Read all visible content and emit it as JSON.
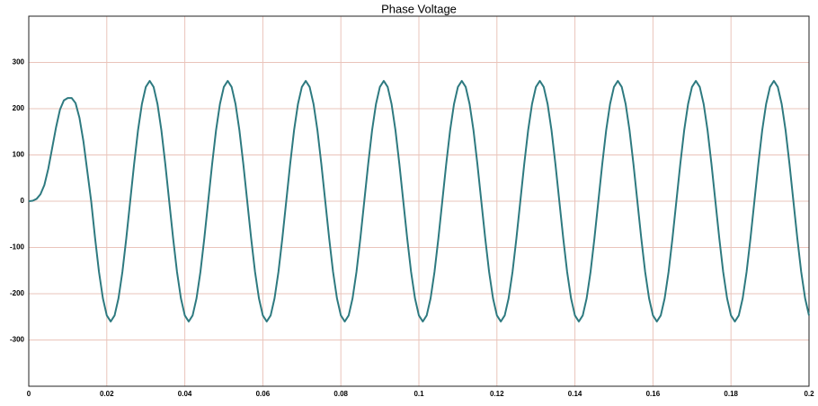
{
  "chart_data": {
    "type": "line",
    "title": "Phase Voltage",
    "x": [
      0,
      0.001,
      0.002,
      0.003,
      0.004,
      0.005,
      0.006,
      0.007,
      0.008,
      0.009,
      0.01,
      0.011,
      0.012,
      0.013,
      0.014,
      0.015,
      0.016,
      0.017,
      0.018,
      0.019,
      0.02,
      0.021,
      0.022,
      0.023,
      0.024,
      0.025,
      0.026,
      0.027,
      0.028,
      0.029,
      0.03,
      0.031,
      0.032,
      0.033,
      0.034,
      0.035,
      0.036,
      0.037,
      0.038,
      0.039,
      0.04,
      0.041,
      0.042,
      0.043,
      0.044,
      0.045,
      0.046,
      0.047,
      0.048,
      0.049,
      0.05,
      0.051,
      0.052,
      0.053,
      0.054,
      0.055,
      0.056,
      0.057,
      0.058,
      0.059,
      0.06,
      0.061,
      0.062,
      0.063,
      0.064,
      0.065,
      0.066,
      0.067,
      0.068,
      0.069,
      0.07,
      0.071,
      0.072,
      0.073,
      0.074,
      0.075,
      0.076,
      0.077,
      0.078,
      0.079,
      0.08,
      0.081,
      0.082,
      0.083,
      0.084,
      0.085,
      0.086,
      0.087,
      0.088,
      0.089,
      0.09,
      0.091,
      0.092,
      0.093,
      0.094,
      0.095,
      0.096,
      0.097,
      0.098,
      0.099,
      0.1,
      0.101,
      0.102,
      0.103,
      0.104,
      0.105,
      0.106,
      0.107,
      0.108,
      0.109,
      0.11,
      0.111,
      0.112,
      0.113,
      0.114,
      0.115,
      0.116,
      0.117,
      0.118,
      0.119,
      0.12,
      0.121,
      0.122,
      0.123,
      0.124,
      0.125,
      0.126,
      0.127,
      0.128,
      0.129,
      0.13,
      0.131,
      0.132,
      0.133,
      0.134,
      0.135,
      0.136,
      0.137,
      0.138,
      0.139,
      0.14,
      0.141,
      0.142,
      0.143,
      0.144,
      0.145,
      0.146,
      0.147,
      0.148,
      0.149,
      0.15,
      0.151,
      0.152,
      0.153,
      0.154,
      0.155,
      0.156,
      0.157,
      0.158,
      0.159,
      0.16,
      0.161,
      0.162,
      0.163,
      0.164,
      0.165,
      0.166,
      0.167,
      0.168,
      0.169,
      0.17,
      0.171,
      0.172,
      0.173,
      0.174,
      0.175,
      0.176,
      0.177,
      0.178,
      0.179,
      0.18,
      0.181,
      0.182,
      0.183,
      0.184,
      0.185,
      0.186,
      0.187,
      0.188,
      0.189,
      0.19,
      0.191,
      0.192,
      0.193,
      0.194,
      0.195,
      0.196,
      0.197,
      0.198,
      0.199,
      0.2
    ],
    "series": [
      {
        "name": "Phase Voltage",
        "color": "#2e7a80",
        "values": [
          0,
          1,
          5,
          15,
          35,
          70,
          115,
          160,
          198,
          218,
          223,
          223,
          212,
          180,
          130,
          65,
          0,
          -80,
          -153,
          -210,
          -247,
          -260,
          -247,
          -210,
          -153,
          -80,
          0,
          80,
          153,
          210,
          247,
          260,
          247,
          210,
          153,
          80,
          0,
          -80,
          -153,
          -210,
          -247,
          -260,
          -247,
          -210,
          -153,
          -80,
          0,
          80,
          153,
          210,
          247,
          260,
          247,
          210,
          153,
          80,
          0,
          -80,
          -153,
          -210,
          -247,
          -260,
          -247,
          -210,
          -153,
          -80,
          0,
          80,
          153,
          210,
          247,
          260,
          247,
          210,
          153,
          80,
          0,
          -80,
          -153,
          -210,
          -247,
          -260,
          -247,
          -210,
          -153,
          -80,
          0,
          80,
          153,
          210,
          247,
          260,
          247,
          210,
          153,
          80,
          0,
          -80,
          -153,
          -210,
          -247,
          -260,
          -247,
          -210,
          -153,
          -80,
          0,
          80,
          153,
          210,
          247,
          260,
          247,
          210,
          153,
          80,
          0,
          -80,
          -153,
          -210,
          -247,
          -260,
          -247,
          -210,
          -153,
          -80,
          0,
          80,
          153,
          210,
          247,
          260,
          247,
          210,
          153,
          80,
          0,
          -80,
          -153,
          -210,
          -247,
          -260,
          -247,
          -210,
          -153,
          -80,
          0,
          80,
          153,
          210,
          247,
          260,
          247,
          210,
          153,
          80,
          0,
          -80,
          -153,
          -210,
          -247,
          -260,
          -247,
          -210,
          -153,
          -80,
          0,
          80,
          153,
          210,
          247,
          260,
          247,
          210,
          153,
          80,
          0,
          -80,
          -153,
          -210,
          -247,
          -260,
          -247,
          -210,
          -153,
          -80,
          0,
          80,
          153,
          210,
          247,
          260,
          247,
          210,
          153,
          80,
          0,
          -80,
          -153,
          -210,
          -247
        ]
      }
    ],
    "xlim": [
      0,
      0.2
    ],
    "xticks": [
      0,
      0.02,
      0.04,
      0.06,
      0.08,
      0.1,
      0.12,
      0.14,
      0.16,
      0.18,
      0.2
    ],
    "ylim": [
      -400,
      400
    ],
    "yticks": [
      -300,
      -200,
      -100,
      0,
      100,
      200,
      300
    ],
    "grid": true
  }
}
